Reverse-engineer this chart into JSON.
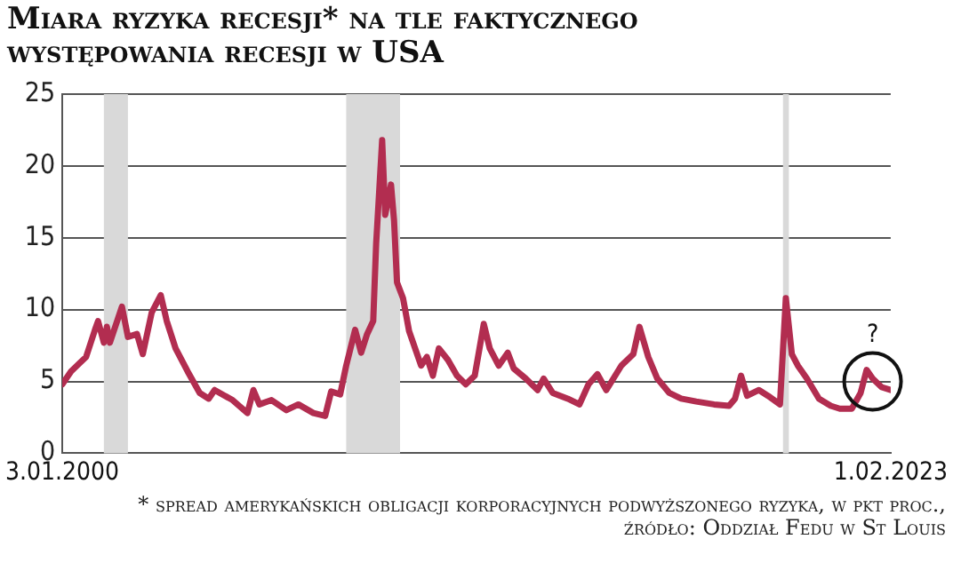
{
  "chart_data": {
    "type": "line",
    "title": "Miara ryzyka recesji* na tle faktycznego występowania recesji w USA",
    "x": [
      "2000-01-03",
      "2000-04",
      "2000-07",
      "2000-09",
      "2000-12",
      "2001-01",
      "2001-03",
      "2001-04",
      "2001-05",
      "2001-09",
      "2001-11",
      "2002-02",
      "2002-04",
      "2002-07",
      "2002-10",
      "2002-12",
      "2003-03",
      "2003-07",
      "2003-11",
      "2004-02",
      "2004-04",
      "2004-10",
      "2005-03",
      "2005-05",
      "2005-07",
      "2005-11",
      "2006-04",
      "2006-08",
      "2007-01",
      "2007-05",
      "2007-07",
      "2007-10",
      "2007-12",
      "2008-03",
      "2008-05",
      "2008-07",
      "2008-09",
      "2008-10",
      "2008-12",
      "2009-01",
      "2009-03",
      "2009-04",
      "2009-05",
      "2009-07",
      "2009-09",
      "2010-01",
      "2010-03",
      "2010-05",
      "2010-07",
      "2010-10",
      "2011-01",
      "2011-04",
      "2011-07",
      "2011-10",
      "2011-12",
      "2012-03",
      "2012-06",
      "2012-08",
      "2012-12",
      "2013-04",
      "2013-06",
      "2013-09",
      "2014-02",
      "2014-06",
      "2014-09",
      "2014-12",
      "2015-03",
      "2015-08",
      "2015-12",
      "2016-02",
      "2016-05",
      "2016-08",
      "2016-12",
      "2017-04",
      "2017-09",
      "2018-03",
      "2018-08",
      "2018-10",
      "2018-12",
      "2019-02",
      "2019-06",
      "2019-09",
      "2020-01",
      "2020-03",
      "2020-05",
      "2020-07",
      "2020-10",
      "2021-02",
      "2021-06",
      "2021-09",
      "2022-01",
      "2022-04",
      "2022-06",
      "2022-08",
      "2022-11",
      "2023-02-01"
    ],
    "series": [
      {
        "color": "#b22d50",
        "values": [
          4.8,
          5.7,
          6.3,
          6.7,
          8.6,
          9.2,
          7.7,
          8.8,
          7.7,
          10.2,
          8.1,
          8.3,
          6.9,
          9.8,
          11.0,
          9.2,
          7.3,
          5.7,
          4.2,
          3.8,
          4.4,
          3.7,
          2.8,
          4.4,
          3.4,
          3.7,
          3.0,
          3.4,
          2.8,
          2.6,
          4.3,
          4.1,
          6.1,
          8.6,
          7.0,
          8.3,
          9.2,
          14.6,
          21.8,
          16.6,
          18.7,
          16.2,
          11.9,
          10.8,
          8.5,
          6.1,
          6.7,
          5.4,
          7.3,
          6.5,
          5.4,
          4.8,
          5.4,
          9.0,
          7.3,
          6.1,
          7.0,
          5.9,
          5.2,
          4.4,
          5.2,
          4.2,
          3.8,
          3.4,
          4.8,
          5.5,
          4.4,
          6.1,
          6.9,
          8.8,
          6.7,
          5.2,
          4.2,
          3.8,
          3.6,
          3.4,
          3.3,
          3.8,
          5.4,
          4.0,
          4.4,
          4.0,
          3.4,
          10.8,
          6.9,
          6.1,
          5.2,
          3.8,
          3.3,
          3.1,
          3.1,
          4.2,
          5.8,
          5.2,
          4.6,
          4.4
        ]
      }
    ],
    "xlim": [
      "2000-01-03",
      "2023-02-01"
    ],
    "xticks": [
      {
        "value": "2000-01-03",
        "label": "3.01.2000"
      },
      {
        "value": "2023-02-01",
        "label": "1.02.2023"
      }
    ],
    "ylim": [
      0,
      25
    ],
    "yticks": [
      0,
      5,
      10,
      15,
      20,
      25
    ],
    "bands": [
      {
        "axis": "x",
        "from": "2001-03",
        "to": "2001-11",
        "color": "#d9d9d9"
      },
      {
        "axis": "x",
        "from": "2007-12",
        "to": "2009-06",
        "color": "#d9d9d9"
      },
      {
        "axis": "x",
        "from": "2020-02",
        "to": "2020-04",
        "color": "#d9d9d9"
      }
    ],
    "grid": "y",
    "legend": false,
    "annotations": [
      {
        "text": "?",
        "x": "2022-08",
        "y": 5
      },
      "* spread amerykańskich obligacji korporacyjnych podwyższonego ryzyka, w pkt proc., źródło: Oddział Fedu w St Louis"
    ]
  }
}
